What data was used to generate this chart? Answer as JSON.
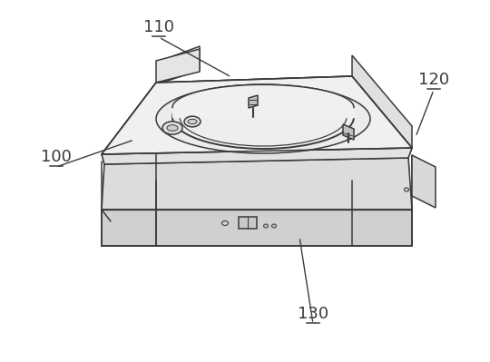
{
  "background_color": "#ffffff",
  "lc": "#3a3a3a",
  "fc_top": "#f0f0f0",
  "fc_top2": "#ebebeb",
  "fc_left": "#e8e8e8",
  "fc_right": "#dedede",
  "fc_front": "#e2e2e2",
  "fc_front_lower": "#d8d8d8",
  "fc_rside": "#d5d5d5",
  "fc_dome": "#f2f2f2",
  "fc_ring_area": "#eeeeee",
  "lw": 1.1,
  "label_fontsize": 13,
  "fig_width": 5.4,
  "fig_height": 3.99,
  "dpi": 100
}
